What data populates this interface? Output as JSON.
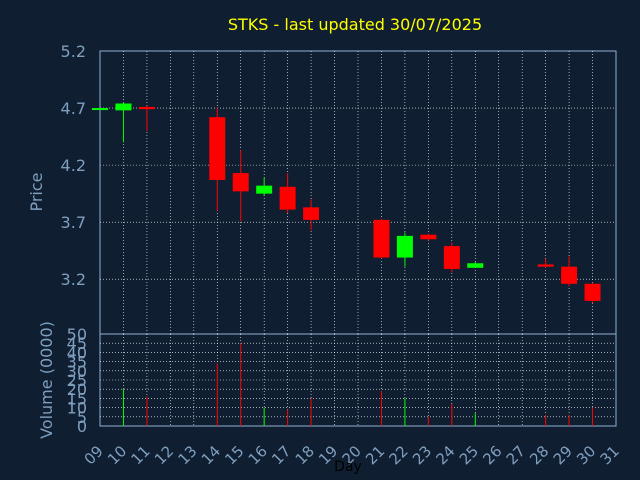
{
  "chart_data": {
    "type": "candlestick",
    "title": "STKS - last updated 30/07/2025",
    "xlabel": "Day",
    "price_axis": {
      "label": "Price",
      "ticks": [
        "5.2",
        "4.7",
        "4.2",
        "3.7",
        "3.2"
      ],
      "ylim": [
        2.72,
        5.2
      ]
    },
    "volume_axis": {
      "label": "Volume (0000)",
      "ticks": [
        "50",
        "45",
        "40",
        "35",
        "30",
        "25",
        "20",
        "15",
        "10",
        "5",
        "0"
      ],
      "ylim": [
        0,
        50
      ]
    },
    "x_ticks": [
      "09",
      "10",
      "11",
      "12",
      "13",
      "14",
      "15",
      "16",
      "17",
      "18",
      "19",
      "20",
      "21",
      "22",
      "23",
      "24",
      "25",
      "26",
      "27",
      "28",
      "29",
      "30",
      "31"
    ],
    "grid": true,
    "candles": [
      {
        "day": 9,
        "open": 4.7,
        "close": 4.7,
        "high": 4.7,
        "low": 4.7,
        "color": "#00ff00"
      },
      {
        "day": 10,
        "open": 4.68,
        "close": 4.74,
        "high": 4.75,
        "low": 4.4,
        "color": "#00ff00"
      },
      {
        "day": 11,
        "open": 4.71,
        "close": 4.69,
        "high": 4.72,
        "low": 4.5,
        "color": "#ff0000"
      },
      {
        "day": 14,
        "open": 4.62,
        "close": 4.07,
        "high": 4.7,
        "low": 3.8,
        "color": "#ff0000"
      },
      {
        "day": 15,
        "open": 4.13,
        "close": 3.97,
        "high": 4.33,
        "low": 3.71,
        "color": "#ff0000"
      },
      {
        "day": 16,
        "open": 3.95,
        "close": 4.02,
        "high": 4.09,
        "low": 3.93,
        "color": "#00ff00"
      },
      {
        "day": 17,
        "open": 4.01,
        "close": 3.81,
        "high": 4.13,
        "low": 3.78,
        "color": "#ff0000"
      },
      {
        "day": 18,
        "open": 3.83,
        "close": 3.72,
        "high": 3.9,
        "low": 3.63,
        "color": "#ff0000"
      },
      {
        "day": 21,
        "open": 3.72,
        "close": 3.39,
        "high": 3.73,
        "low": 3.38,
        "color": "#ff0000"
      },
      {
        "day": 22,
        "open": 3.39,
        "close": 3.58,
        "high": 3.61,
        "low": 3.31,
        "color": "#00ff00"
      },
      {
        "day": 23,
        "open": 3.59,
        "close": 3.55,
        "high": 3.6,
        "low": 3.54,
        "color": "#ff0000"
      },
      {
        "day": 24,
        "open": 3.49,
        "close": 3.29,
        "high": 3.52,
        "low": 3.26,
        "color": "#ff0000"
      },
      {
        "day": 25,
        "open": 3.3,
        "close": 3.34,
        "high": 3.35,
        "low": 3.3,
        "color": "#00ff00"
      },
      {
        "day": 28,
        "open": 3.33,
        "close": 3.31,
        "high": 3.38,
        "low": 3.3,
        "color": "#ff0000"
      },
      {
        "day": 29,
        "open": 3.31,
        "close": 3.16,
        "high": 3.4,
        "low": 3.14,
        "color": "#ff0000"
      },
      {
        "day": 30,
        "open": 3.16,
        "close": 3.01,
        "high": 3.17,
        "low": 2.99,
        "color": "#ff0000"
      }
    ],
    "volume": [
      {
        "day": 10,
        "value": 20,
        "color": "#00ff00"
      },
      {
        "day": 11,
        "value": 16,
        "color": "#ff0000"
      },
      {
        "day": 14,
        "value": 34,
        "color": "#ff0000"
      },
      {
        "day": 15,
        "value": 45,
        "color": "#ff0000"
      },
      {
        "day": 16,
        "value": 10,
        "color": "#00ff00"
      },
      {
        "day": 17,
        "value": 9,
        "color": "#ff0000"
      },
      {
        "day": 18,
        "value": 15,
        "color": "#ff0000"
      },
      {
        "day": 21,
        "value": 19,
        "color": "#ff0000"
      },
      {
        "day": 22,
        "value": 15,
        "color": "#00ff00"
      },
      {
        "day": 23,
        "value": 5,
        "color": "#ff0000"
      },
      {
        "day": 24,
        "value": 12,
        "color": "#ff0000"
      },
      {
        "day": 25,
        "value": 7,
        "color": "#00ff00"
      },
      {
        "day": 28,
        "value": 6,
        "color": "#ff0000"
      },
      {
        "day": 29,
        "value": 6,
        "color": "#ff0000"
      },
      {
        "day": 30,
        "value": 10,
        "color": "#ff0000"
      }
    ],
    "colors": {
      "background": "#0f1e30",
      "frame": "#8fb0d0",
      "text": "#7f9fbf",
      "title": "#ffff00",
      "up": "#00ff00",
      "down": "#ff0000"
    }
  }
}
